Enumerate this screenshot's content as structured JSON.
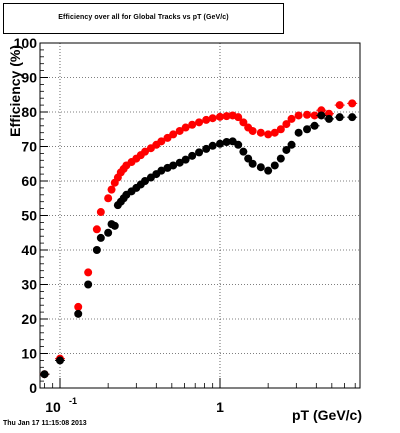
{
  "chart_data": {
    "type": "scatter",
    "title": "Efficiency over all for Global Tracks vs pT (GeV/c)",
    "xlabel": "pT (GeV/c)",
    "ylabel": "Efficiency (%)",
    "x_scale": "log",
    "xlim": [
      0.075,
      7.5
    ],
    "ylim": [
      0,
      100
    ],
    "x_tick_labels": [
      {
        "value": 0.1,
        "base": "10",
        "exp": "-1"
      },
      {
        "value": 1,
        "label": "1"
      }
    ],
    "y_ticks": [
      0,
      10,
      20,
      30,
      40,
      50,
      60,
      70,
      80,
      90,
      100
    ],
    "grid": true,
    "series": [
      {
        "color": "#ff0000",
        "points": [
          [
            0.08,
            4
          ],
          [
            0.1,
            8.5
          ],
          [
            0.13,
            23.5
          ],
          [
            0.15,
            33.5
          ],
          [
            0.17,
            46
          ],
          [
            0.18,
            51
          ],
          [
            0.2,
            55
          ],
          [
            0.21,
            57.5
          ],
          [
            0.22,
            59.5
          ],
          [
            0.23,
            61
          ],
          [
            0.24,
            62.5
          ],
          [
            0.25,
            63.5
          ],
          [
            0.26,
            64.5
          ],
          [
            0.28,
            65.5
          ],
          [
            0.3,
            66.5
          ],
          [
            0.32,
            67.5
          ],
          [
            0.34,
            68.5
          ],
          [
            0.37,
            69.5
          ],
          [
            0.4,
            70.5
          ],
          [
            0.43,
            71.5
          ],
          [
            0.47,
            72.5
          ],
          [
            0.51,
            73.5
          ],
          [
            0.56,
            74.5
          ],
          [
            0.61,
            75.5
          ],
          [
            0.67,
            76.3
          ],
          [
            0.74,
            77
          ],
          [
            0.82,
            77.7
          ],
          [
            0.9,
            78.2
          ],
          [
            1.0,
            78.6
          ],
          [
            1.1,
            78.8
          ],
          [
            1.2,
            79
          ],
          [
            1.3,
            78.5
          ],
          [
            1.4,
            77
          ],
          [
            1.5,
            75.5
          ],
          [
            1.6,
            74.5
          ],
          [
            1.8,
            74
          ],
          [
            2.0,
            73.5
          ],
          [
            2.2,
            74
          ],
          [
            2.4,
            75
          ],
          [
            2.6,
            76.5
          ],
          [
            2.8,
            78
          ],
          [
            3.1,
            79
          ],
          [
            3.5,
            79.2
          ],
          [
            3.9,
            79
          ],
          [
            4.3,
            80.5
          ],
          [
            4.8,
            79.5
          ],
          [
            5.6,
            82
          ],
          [
            6.7,
            82.5
          ]
        ]
      },
      {
        "color": "#000000",
        "points": [
          [
            0.08,
            4
          ],
          [
            0.1,
            8
          ],
          [
            0.13,
            21.5
          ],
          [
            0.15,
            30
          ],
          [
            0.17,
            40
          ],
          [
            0.18,
            43.5
          ],
          [
            0.2,
            45
          ],
          [
            0.21,
            47.5
          ],
          [
            0.22,
            47
          ],
          [
            0.23,
            53
          ],
          [
            0.24,
            54
          ],
          [
            0.25,
            55
          ],
          [
            0.26,
            56
          ],
          [
            0.28,
            57
          ],
          [
            0.3,
            58
          ],
          [
            0.32,
            59
          ],
          [
            0.34,
            60
          ],
          [
            0.37,
            61
          ],
          [
            0.4,
            62
          ],
          [
            0.43,
            63
          ],
          [
            0.47,
            63.8
          ],
          [
            0.51,
            64.5
          ],
          [
            0.56,
            65.3
          ],
          [
            0.61,
            66.2
          ],
          [
            0.67,
            67.3
          ],
          [
            0.74,
            68.3
          ],
          [
            0.82,
            69.3
          ],
          [
            0.9,
            70.2
          ],
          [
            1.0,
            70.8
          ],
          [
            1.1,
            71.3
          ],
          [
            1.2,
            71.5
          ],
          [
            1.3,
            70.5
          ],
          [
            1.4,
            68.5
          ],
          [
            1.5,
            66.5
          ],
          [
            1.6,
            65
          ],
          [
            1.8,
            64
          ],
          [
            2.0,
            63
          ],
          [
            2.2,
            64.5
          ],
          [
            2.4,
            66.5
          ],
          [
            2.6,
            69
          ],
          [
            2.8,
            70.5
          ],
          [
            3.1,
            74
          ],
          [
            3.5,
            75
          ],
          [
            3.9,
            76
          ],
          [
            4.3,
            79
          ],
          [
            4.8,
            78
          ],
          [
            5.6,
            78.5
          ],
          [
            6.7,
            78.5
          ]
        ]
      }
    ]
  },
  "footer": "Thu Jan 17 11:15:08 2013"
}
